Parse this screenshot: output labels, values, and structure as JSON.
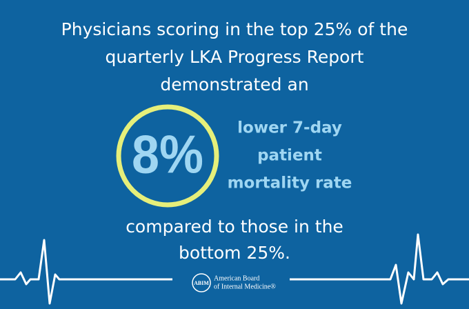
{
  "headline": {
    "lines": [
      "Physicians scoring in the top 25% of the",
      "quarterly LKA Progress Report",
      "demonstrated an"
    ]
  },
  "stat": {
    "value": "8%",
    "description": [
      "lower 7-day",
      "patient",
      "mortality rate"
    ]
  },
  "footer_text": {
    "lines": [
      "compared to those in the",
      "bottom 25%."
    ]
  },
  "logo": {
    "monogram": "ABIM",
    "name_lines": [
      "American Board",
      "of Internal Medicine®"
    ]
  }
}
